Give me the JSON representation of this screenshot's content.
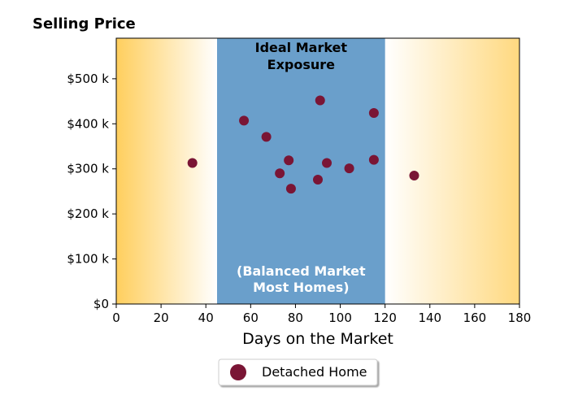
{
  "chart_data": {
    "type": "scatter",
    "title": "Selling Price",
    "xlabel": "Days on the Market",
    "ylabel": "",
    "xlim": [
      0,
      180
    ],
    "ylim": [
      0,
      590000
    ],
    "x_ticks": [
      0,
      20,
      40,
      60,
      80,
      100,
      120,
      140,
      160,
      180
    ],
    "x_tick_labels": [
      "0",
      "20",
      "40",
      "60",
      "80",
      "100",
      "120",
      "140",
      "160",
      "180"
    ],
    "y_ticks": [
      0,
      100000,
      200000,
      300000,
      400000,
      500000
    ],
    "y_tick_labels": [
      "$0",
      "$100 k",
      "$200 k",
      "$300 k",
      "$400 k",
      "$500 k"
    ],
    "band": {
      "x_range": [
        45,
        120
      ],
      "color": "#6a9fcb",
      "top_label_line1": "Ideal Market",
      "top_label_line2": "Exposure",
      "bottom_label_line1": "(Balanced Market",
      "bottom_label_line2": "Most Homes)"
    },
    "gradient_color": "#ffcc55",
    "grid": false,
    "legend_position": "bottom-center",
    "series": [
      {
        "name": "Detached Home",
        "color": "#7a1535",
        "points": [
          {
            "x": 34,
            "y": 313000
          },
          {
            "x": 57,
            "y": 407000
          },
          {
            "x": 67,
            "y": 371000
          },
          {
            "x": 73,
            "y": 290000
          },
          {
            "x": 77,
            "y": 319000
          },
          {
            "x": 78,
            "y": 256000
          },
          {
            "x": 90,
            "y": 276000
          },
          {
            "x": 91,
            "y": 452000
          },
          {
            "x": 94,
            "y": 313000
          },
          {
            "x": 104,
            "y": 301000
          },
          {
            "x": 115,
            "y": 424000
          },
          {
            "x": 115,
            "y": 320000
          },
          {
            "x": 133,
            "y": 285000
          }
        ]
      }
    ]
  }
}
